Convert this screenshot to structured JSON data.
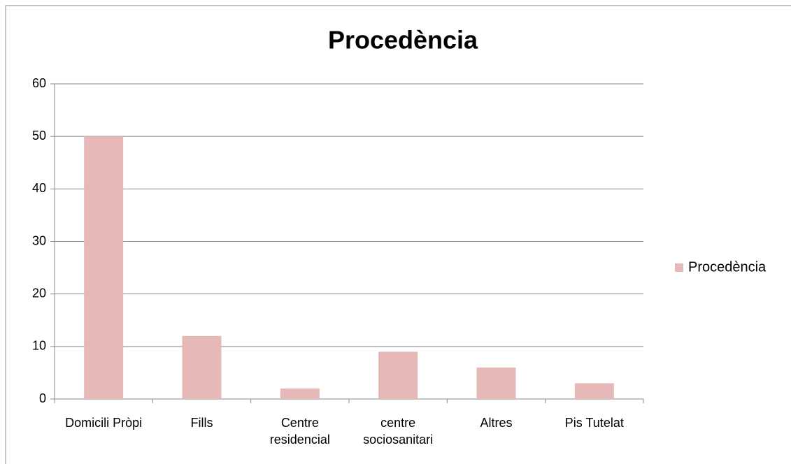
{
  "chart_data": {
    "type": "bar",
    "title": "Procedència",
    "categories": [
      "Domicili Pròpi",
      "Fills",
      "Centre residencial",
      "centre sociosanitari",
      "Altres",
      "Pis Tutelat"
    ],
    "series": [
      {
        "name": "Procedència",
        "color": "#e6b9b8",
        "values": [
          50,
          12,
          2,
          9,
          6,
          3
        ]
      }
    ],
    "ylim": [
      0,
      60
    ],
    "yticks": [
      0,
      10,
      20,
      30,
      40,
      50,
      60
    ],
    "grid": true,
    "legend": "right"
  }
}
